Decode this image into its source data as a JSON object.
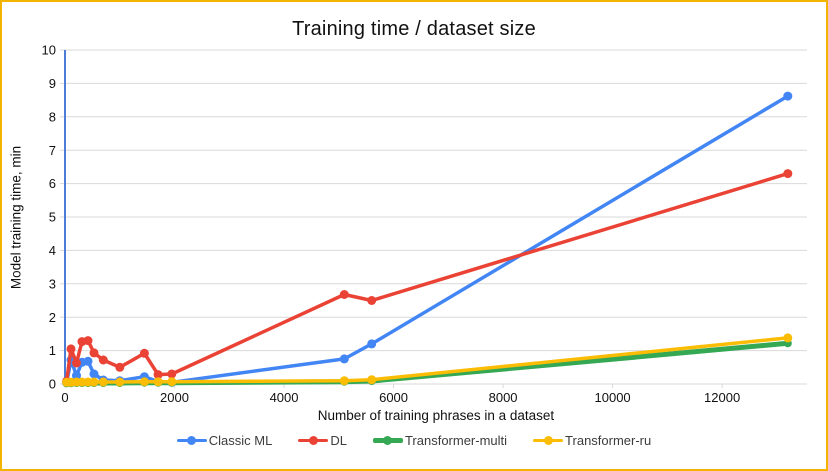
{
  "window": {
    "background": "#ffffff",
    "border_color": "#f2b400"
  },
  "chart_data": {
    "type": "line",
    "title": "Training time / dataset size",
    "xlabel": "Number of training phrases in a dataset",
    "ylabel": "Model training time, min",
    "xlim": [
      0,
      13550
    ],
    "ylim": [
      0,
      10
    ],
    "x_ticks": [
      0,
      2000,
      4000,
      6000,
      8000,
      10000,
      12000
    ],
    "y_ticks": [
      0,
      1,
      2,
      3,
      4,
      5,
      6,
      7,
      8,
      9,
      10
    ],
    "grid": true,
    "grid_color": "#d9d9d9",
    "axis_line_color": "#4d7cd6",
    "tick_label_color": "#111111",
    "legend_position": "bottom",
    "x": [
      30,
      110,
      210,
      310,
      420,
      530,
      700,
      1000,
      1450,
      1700,
      1950,
      5100,
      5600,
      13200
    ],
    "series": [
      {
        "name": "Classic ML",
        "color": "#4285f4",
        "line_width": 3.5,
        "marker_radius": 4.5,
        "values": [
          0.04,
          0.72,
          0.25,
          0.65,
          0.68,
          0.3,
          0.12,
          0.1,
          0.22,
          0.07,
          0.05,
          0.75,
          1.2,
          8.62
        ]
      },
      {
        "name": "DL",
        "color": "#ea4335",
        "line_width": 3.5,
        "marker_radius": 4.5,
        "values": [
          0.08,
          1.05,
          0.63,
          1.27,
          1.3,
          0.93,
          0.72,
          0.5,
          0.92,
          0.28,
          0.3,
          2.68,
          2.5,
          6.3
        ]
      },
      {
        "name": "Transformer-multi",
        "color": "#34a853",
        "line_width": 5,
        "marker_radius": 4,
        "values": [
          0.02,
          0.02,
          0.03,
          0.03,
          0.03,
          0.03,
          0.03,
          0.03,
          0.04,
          0.04,
          0.04,
          0.07,
          0.09,
          1.22
        ]
      },
      {
        "name": "Transformer-ru",
        "color": "#fbbc04",
        "line_width": 3.5,
        "marker_radius": 4.5,
        "values": [
          0.05,
          0.05,
          0.06,
          0.06,
          0.06,
          0.06,
          0.06,
          0.06,
          0.07,
          0.07,
          0.07,
          0.1,
          0.13,
          1.38
        ]
      }
    ]
  }
}
